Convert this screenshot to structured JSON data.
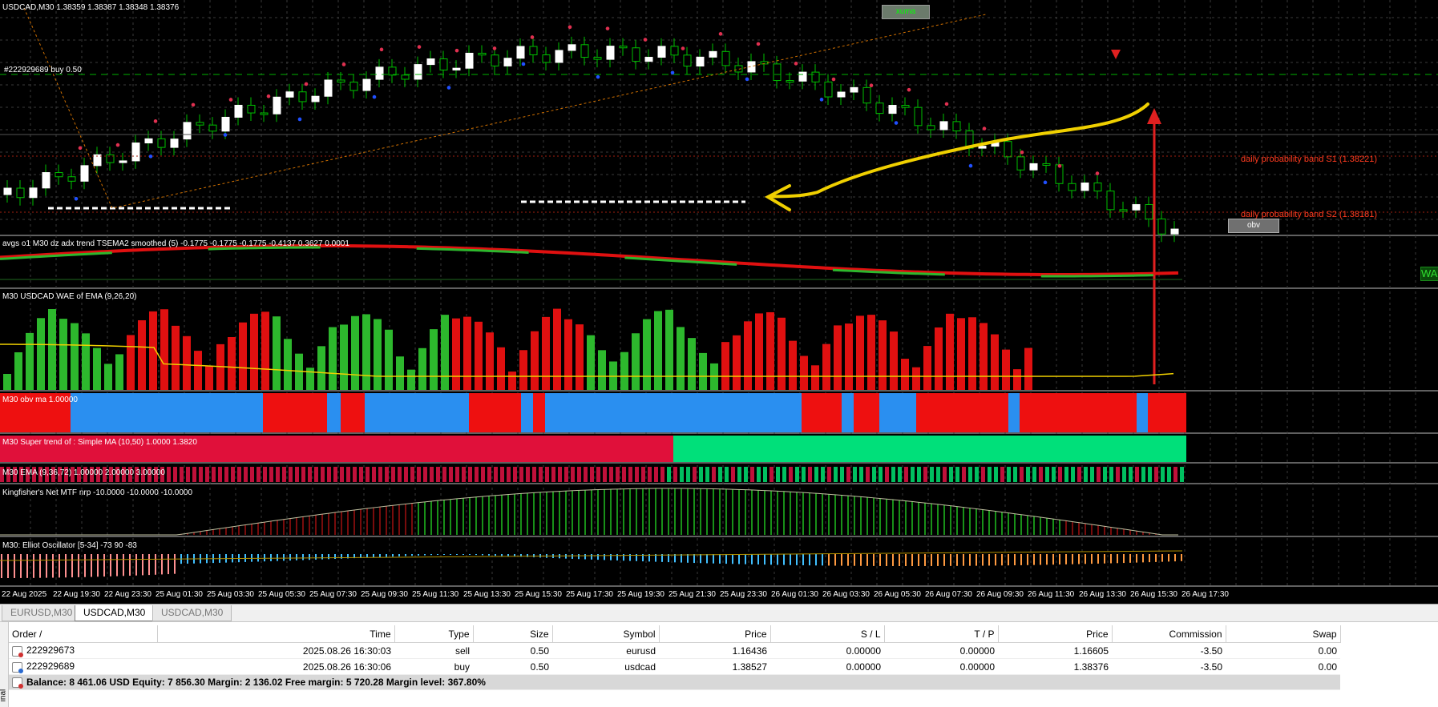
{
  "chart": {
    "header": "USDCAD,M30  1.38359 1.38387 1.38348 1.38376",
    "xuma_label": "xuma",
    "order_line_label": "#222929689 buy 0.50",
    "band_s1": "daily probability band S1 (1.38221)",
    "band_s2": "daily probability band S2 (1.38181)",
    "obv_button": "obv",
    "wa_label": "WA"
  },
  "panes": {
    "adx": "avgs o1 M30 dz adx trend TSEMA2 smoothed (5) -0.1775 -0.1775 -0.1775 -0.4137 0.3627 0.0001",
    "wae": "M30 USDCAD WAE of EMA (9,26,20)",
    "obv": "M30 obv ma 1.00000",
    "supertrend": "M30  Super trend of :  Simple MA (10,50)  1.0000 1.3820",
    "ema": "M30 EMA (9,36,72)  1.00000  2.00000  3.00000",
    "kingfisher": "Kingfisher's Net MTF nrp -10.0000 -10.0000 -10.0000",
    "elliot": "M30: Elliot Oscillator [5-34]  -73 90 -83"
  },
  "x_axis": [
    "22 Aug 2025",
    "22 Aug 19:30",
    "22 Aug 23:30",
    "25 Aug 01:30",
    "25 Aug 03:30",
    "25 Aug 05:30",
    "25 Aug 07:30",
    "25 Aug 09:30",
    "25 Aug 11:30",
    "25 Aug 13:30",
    "25 Aug 15:30",
    "25 Aug 17:30",
    "25 Aug 19:30",
    "25 Aug 21:30",
    "25 Aug 23:30",
    "26 Aug 01:30",
    "26 Aug 03:30",
    "26 Aug 05:30",
    "26 Aug 07:30",
    "26 Aug 09:30",
    "26 Aug 11:30",
    "26 Aug 13:30",
    "26 Aug 15:30",
    "26 Aug 17:30"
  ],
  "symbol_tabs": [
    {
      "label": "EURUSD,M30",
      "active": false
    },
    {
      "label": "USDCAD,M30",
      "active": true
    },
    {
      "label": "USDCAD,M30",
      "active": false
    }
  ],
  "terminal": {
    "side_label": "inal",
    "headers": [
      "Order  /",
      "Time",
      "Type",
      "Size",
      "Symbol",
      "Price",
      "S / L",
      "T / P",
      "Price",
      "Commission",
      "Swap"
    ],
    "rows": [
      {
        "order": "222929673",
        "time": "2025.08.26 16:30:03",
        "type": "sell",
        "size": "0.50",
        "symbol": "eurusd",
        "price": "1.16436",
        "sl": "0.00000",
        "tp": "0.00000",
        "cur": "1.16605",
        "commission": "-3.50",
        "swap": "0.00"
      },
      {
        "order": "222929689",
        "time": "2025.08.26 16:30:06",
        "type": "buy",
        "size": "0.50",
        "symbol": "usdcad",
        "price": "1.38527",
        "sl": "0.00000",
        "tp": "0.00000",
        "cur": "1.38376",
        "commission": "-3.50",
        "swap": "0.00"
      }
    ],
    "balance": "Balance: 8 461.06 USD  Equity: 7 856.30  Margin: 2 136.02  Free margin: 5 720.28  Margin level: 367.80%"
  },
  "colors": {
    "bull": "#ffffff",
    "bear": "#00c000",
    "up": "#2db82d",
    "down": "#e01010",
    "obv_blue": "#2a8ff0",
    "st_red": "#e0103a",
    "st_green": "#00e07a",
    "accent_yellow": "#f0d000",
    "grid": "#3a3a3a"
  }
}
